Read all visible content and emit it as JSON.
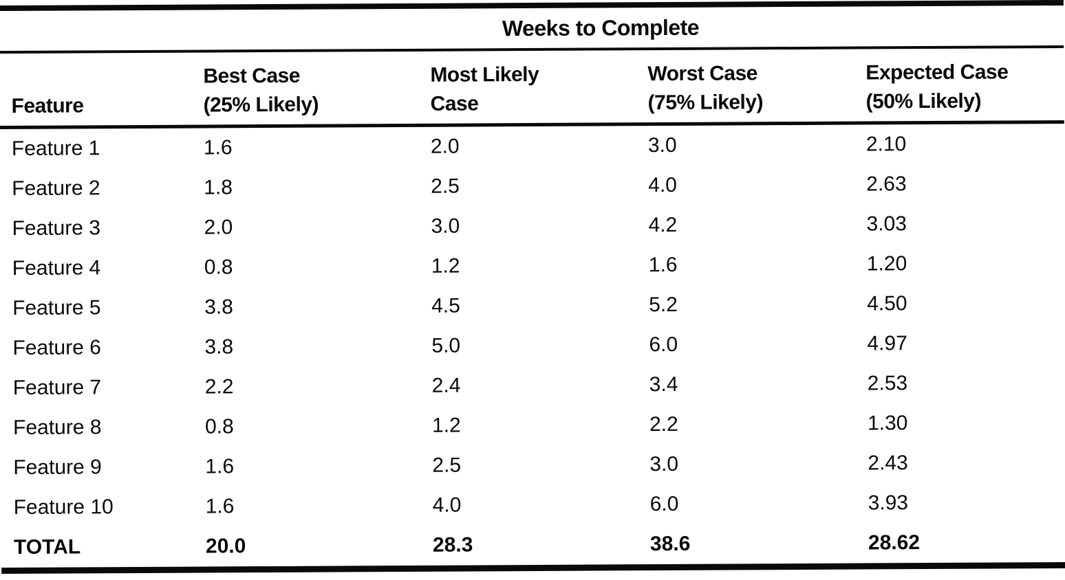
{
  "page": {
    "background": "#ffffff",
    "ink": "#0a0a0a"
  },
  "table": {
    "spanner_header": "Weeks to Complete",
    "feature_column_header": "Feature",
    "case_columns": [
      {
        "line1": "Best Case",
        "line2": "(25% Likely)"
      },
      {
        "line1": "Most Likely",
        "line2": "Case"
      },
      {
        "line1": "Worst Case",
        "line2": "(75% Likely)"
      },
      {
        "line1": "Expected Case",
        "line2": "(50% Likely)"
      }
    ],
    "rows": [
      {
        "feature": "Feature 1",
        "best": "1.6",
        "most_likely": "2.0",
        "worst": "3.0",
        "expected": "2.10"
      },
      {
        "feature": "Feature 2",
        "best": "1.8",
        "most_likely": "2.5",
        "worst": "4.0",
        "expected": "2.63"
      },
      {
        "feature": "Feature 3",
        "best": "2.0",
        "most_likely": "3.0",
        "worst": "4.2",
        "expected": "3.03"
      },
      {
        "feature": "Feature 4",
        "best": "0.8",
        "most_likely": "1.2",
        "worst": "1.6",
        "expected": "1.20"
      },
      {
        "feature": "Feature 5",
        "best": "3.8",
        "most_likely": "4.5",
        "worst": "5.2",
        "expected": "4.50"
      },
      {
        "feature": "Feature 6",
        "best": "3.8",
        "most_likely": "5.0",
        "worst": "6.0",
        "expected": "4.97"
      },
      {
        "feature": "Feature 7",
        "best": "2.2",
        "most_likely": "2.4",
        "worst": "3.4",
        "expected": "2.53"
      },
      {
        "feature": "Feature 8",
        "best": "0.8",
        "most_likely": "1.2",
        "worst": "2.2",
        "expected": "1.30"
      },
      {
        "feature": "Feature 9",
        "best": "1.6",
        "most_likely": "2.5",
        "worst": "3.0",
        "expected": "2.43"
      },
      {
        "feature": "Feature 10",
        "best": "1.6",
        "most_likely": "4.0",
        "worst": "6.0",
        "expected": "3.93"
      }
    ],
    "total_row": {
      "feature": "TOTAL",
      "best": "20.0",
      "most_likely": "28.3",
      "worst": "38.6",
      "expected": "28.62"
    }
  }
}
